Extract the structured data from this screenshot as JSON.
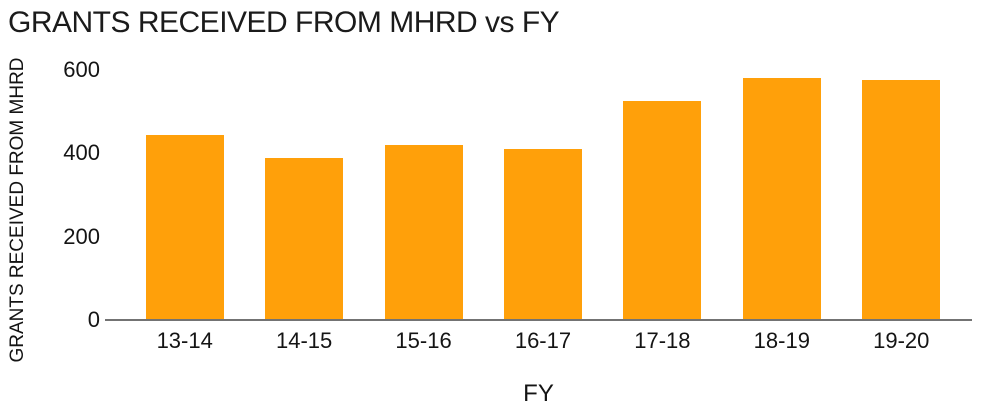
{
  "chart_data": {
    "type": "bar",
    "title": "GRANTS RECEIVED FROM MHRD vs FY",
    "xlabel": "FY",
    "ylabel": "GRANTS RECEIVED FROM MHRD",
    "categories": [
      "13-14",
      "14-15",
      "15-16",
      "16-17",
      "17-18",
      "18-19",
      "19-20"
    ],
    "values": [
      445,
      390,
      420,
      410,
      525,
      580,
      575
    ],
    "ylim": [
      0,
      600
    ],
    "yticks": [
      0,
      200,
      400,
      600
    ],
    "grid": false,
    "legend": "none",
    "bar_color": "#ffa00a"
  },
  "colors": {
    "bar": "#ffa00a",
    "axis_line": "#737373",
    "title_text": "#1b1b1b",
    "axis_text": "#141414",
    "background": "#ffffff"
  }
}
